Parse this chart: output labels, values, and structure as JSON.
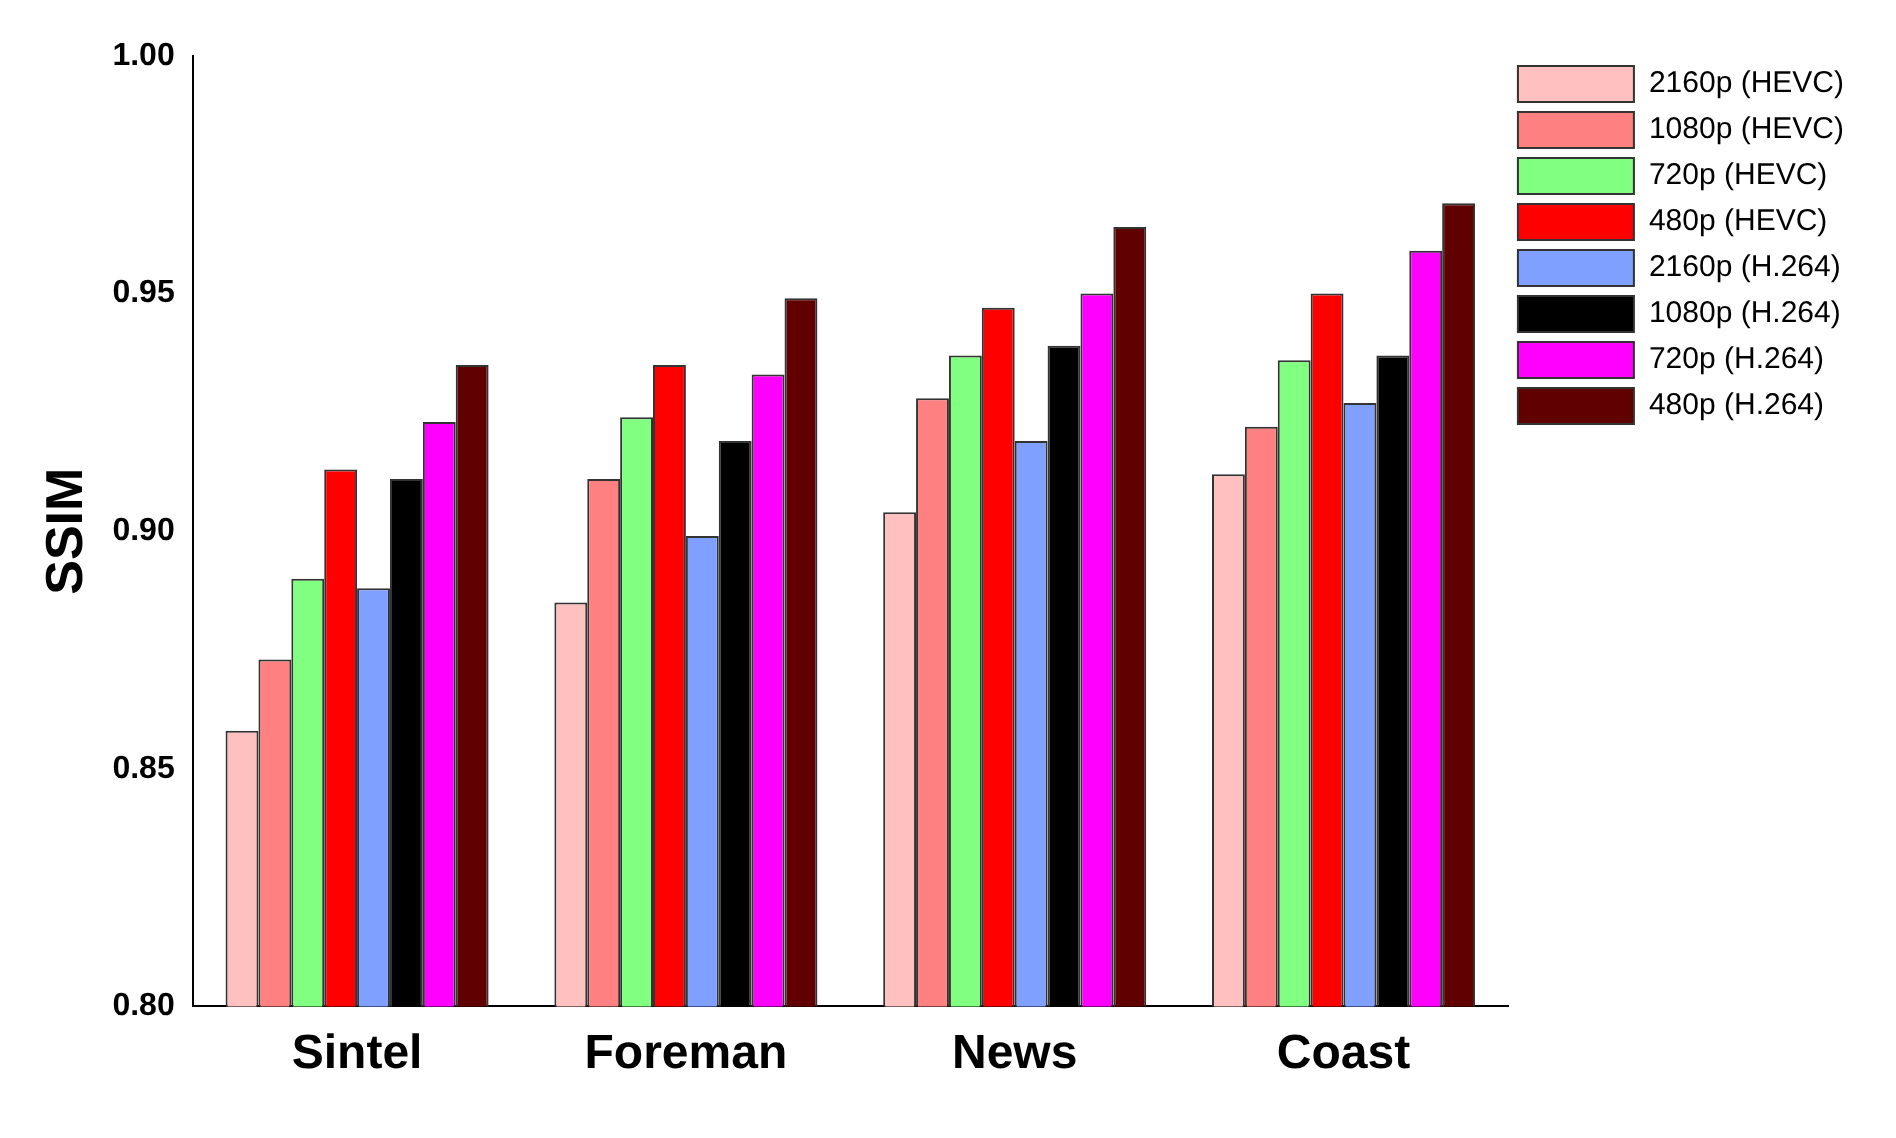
{
  "chart_data": {
    "type": "bar",
    "ylabel": "SSIM",
    "categories": [
      "Sintel",
      "Foreman",
      "News",
      "Coast"
    ],
    "series": [
      {
        "name": "2160p (HEVC)",
        "color": "#ffc0c0",
        "values": [
          0.858,
          0.885,
          0.904,
          0.912
        ]
      },
      {
        "name": "1080p (HEVC)",
        "color": "#ff8080",
        "values": [
          0.873,
          0.911,
          0.928,
          0.922
        ]
      },
      {
        "name": "720p (HEVC)",
        "color": "#80ff80",
        "values": [
          0.89,
          0.924,
          0.937,
          0.936
        ]
      },
      {
        "name": "480p (HEVC)",
        "color": "#ff0000",
        "values": [
          0.913,
          0.935,
          0.947,
          0.95
        ]
      },
      {
        "name": "2160p (H.264)",
        "color": "#80a0ff",
        "values": [
          0.888,
          0.899,
          0.919,
          0.927
        ]
      },
      {
        "name": "1080p (H.264)",
        "color": "#000000",
        "values": [
          0.911,
          0.919,
          0.939,
          0.937
        ]
      },
      {
        "name": "720p (H.264)",
        "color": "#ff00ff",
        "values": [
          0.923,
          0.933,
          0.95,
          0.959
        ]
      },
      {
        "name": "480p (H.264)",
        "color": "#600000",
        "values": [
          0.935,
          0.949,
          0.964,
          0.969
        ]
      }
    ],
    "ylim": [
      0.8,
      1.0
    ],
    "yticks": [
      {
        "value": 0.8,
        "label": "0.80"
      },
      {
        "value": 0.85,
        "label": "0.85"
      },
      {
        "value": 0.9,
        "label": "0.90"
      },
      {
        "value": 0.95,
        "label": "0.95"
      },
      {
        "value": 1.0,
        "label": "1.00"
      }
    ],
    "grid": false,
    "legend": "top right"
  }
}
